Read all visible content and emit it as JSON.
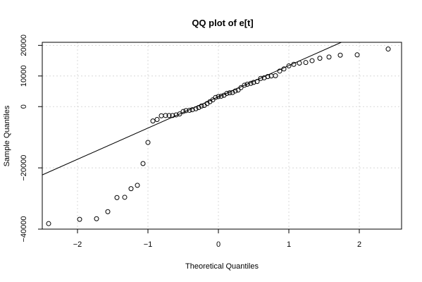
{
  "chart_data": {
    "type": "scatter",
    "title": "QQ plot of e[t]",
    "xlabel": "Theoretical Quantiles",
    "ylabel": "Sample Quantiles",
    "xlim": [
      -2.5,
      2.6
    ],
    "ylim": [
      -40000,
      21000
    ],
    "xticks": [
      -2,
      -1,
      0,
      1,
      2
    ],
    "xtick_labels": [
      "−2",
      "−1",
      "0",
      "1",
      "2"
    ],
    "yticks": [
      -40000,
      -20000,
      0,
      10000,
      20000
    ],
    "ytick_labels": [
      "−40000",
      "−20000",
      "0",
      "10000",
      "20000"
    ],
    "grid": true,
    "reference_line": {
      "slope": 10200,
      "intercept": 3200
    },
    "points": [
      {
        "x": -2.41,
        "y": -38200
      },
      {
        "x": -1.97,
        "y": -36800
      },
      {
        "x": -1.73,
        "y": -36600
      },
      {
        "x": -1.57,
        "y": -34300
      },
      {
        "x": -1.44,
        "y": -29700
      },
      {
        "x": -1.33,
        "y": -29600
      },
      {
        "x": -1.24,
        "y": -26800
      },
      {
        "x": -1.15,
        "y": -25700
      },
      {
        "x": -1.07,
        "y": -18600
      },
      {
        "x": -1.0,
        "y": -11700
      },
      {
        "x": -0.93,
        "y": -4700
      },
      {
        "x": -0.87,
        "y": -4200
      },
      {
        "x": -0.81,
        "y": -3000
      },
      {
        "x": -0.75,
        "y": -2900
      },
      {
        "x": -0.7,
        "y": -2900
      },
      {
        "x": -0.65,
        "y": -2900
      },
      {
        "x": -0.6,
        "y": -2700
      },
      {
        "x": -0.55,
        "y": -2400
      },
      {
        "x": -0.5,
        "y": -1600
      },
      {
        "x": -0.46,
        "y": -1300
      },
      {
        "x": -0.41,
        "y": -1200
      },
      {
        "x": -0.37,
        "y": -1000
      },
      {
        "x": -0.32,
        "y": -700
      },
      {
        "x": -0.28,
        "y": -300
      },
      {
        "x": -0.24,
        "y": 200
      },
      {
        "x": -0.2,
        "y": 400
      },
      {
        "x": -0.16,
        "y": 1000
      },
      {
        "x": -0.12,
        "y": 1600
      },
      {
        "x": -0.08,
        "y": 2200
      },
      {
        "x": -0.04,
        "y": 3000
      },
      {
        "x": 0.0,
        "y": 3300
      },
      {
        "x": 0.04,
        "y": 3400
      },
      {
        "x": 0.08,
        "y": 3700
      },
      {
        "x": 0.12,
        "y": 4300
      },
      {
        "x": 0.16,
        "y": 4500
      },
      {
        "x": 0.2,
        "y": 4600
      },
      {
        "x": 0.24,
        "y": 5100
      },
      {
        "x": 0.28,
        "y": 5400
      },
      {
        "x": 0.32,
        "y": 6200
      },
      {
        "x": 0.37,
        "y": 7000
      },
      {
        "x": 0.41,
        "y": 7300
      },
      {
        "x": 0.46,
        "y": 7600
      },
      {
        "x": 0.5,
        "y": 7900
      },
      {
        "x": 0.55,
        "y": 8200
      },
      {
        "x": 0.6,
        "y": 9200
      },
      {
        "x": 0.65,
        "y": 9400
      },
      {
        "x": 0.7,
        "y": 9800
      },
      {
        "x": 0.75,
        "y": 10000
      },
      {
        "x": 0.81,
        "y": 10100
      },
      {
        "x": 0.87,
        "y": 11600
      },
      {
        "x": 0.93,
        "y": 12300
      },
      {
        "x": 1.0,
        "y": 13300
      },
      {
        "x": 1.07,
        "y": 13800
      },
      {
        "x": 1.15,
        "y": 14200
      },
      {
        "x": 1.24,
        "y": 14400
      },
      {
        "x": 1.33,
        "y": 15000
      },
      {
        "x": 1.44,
        "y": 15800
      },
      {
        "x": 1.57,
        "y": 16200
      },
      {
        "x": 1.73,
        "y": 16800
      },
      {
        "x": 1.97,
        "y": 16900
      },
      {
        "x": 2.41,
        "y": 18800
      }
    ]
  }
}
